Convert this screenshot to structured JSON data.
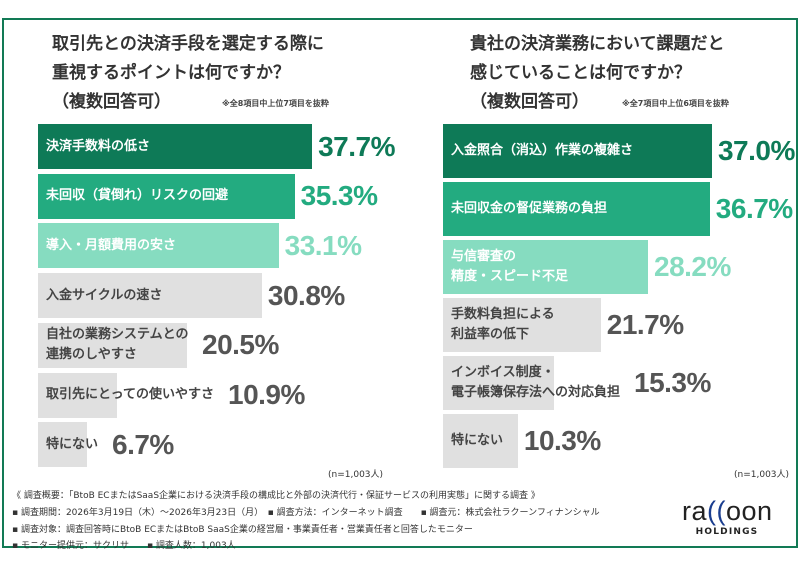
{
  "chart_data": [
    {
      "type": "bar",
      "orientation": "horizontal",
      "title": "取引先との決済手段を選定する際に重視するポイントは何ですか？（複数回答可）",
      "title_lines": [
        "取引先との決済手段を選定する際に",
        "重視するポイントは何ですか？",
        "（複数回答可）"
      ],
      "note": "※全8項目中上位7項目を抜粋",
      "n_label": "(n=1,003人)",
      "unit": "%",
      "categories": [
        "決済手数料の低さ",
        "未回収（貸倒れ）リスクの回避",
        "導入・月額費用の安さ",
        "入金サイクルの速さ",
        "自社の業務システムとの\n連携のしやすさ",
        "取引先にとっての使いやすさ",
        "特にない"
      ],
      "values": [
        37.7,
        35.3,
        33.1,
        30.8,
        20.5,
        10.9,
        6.7
      ],
      "labels": [
        "37.7%",
        "35.3%",
        "33.1%",
        "30.8%",
        "20.5%",
        "10.9%",
        "6.7%"
      ],
      "colors": [
        "#0e7a57",
        "#23ab80",
        "#86dcc0",
        "#e0e0e0",
        "#e0e0e0",
        "#e0e0e0",
        "#e0e0e0"
      ]
    },
    {
      "type": "bar",
      "orientation": "horizontal",
      "title": "貴社の決済業務において課題だと感じていることは何ですか？（複数回答可）",
      "title_lines": [
        "貴社の決済業務において課題だと",
        "感じていることは何ですか？",
        "（複数回答可）"
      ],
      "note": "※全7項目中上位6項目を抜粋",
      "n_label": "(n=1,003人)",
      "unit": "%",
      "categories": [
        "入金照合（消込）作業の複雑さ",
        "未回収金の督促業務の負担",
        "与信審査の\n精度・スピード不足",
        "手数料負担による\n利益率の低下",
        "インボイス制度・\n電子帳簿保存法への対応負担",
        "特にない"
      ],
      "values": [
        37.0,
        36.7,
        28.2,
        21.7,
        15.3,
        10.3
      ],
      "labels": [
        "37.0%",
        "36.7%",
        "28.2%",
        "21.7%",
        "15.3%",
        "10.3%"
      ],
      "colors": [
        "#0e7a57",
        "#23ab80",
        "#86dcc0",
        "#e0e0e0",
        "#e0e0e0",
        "#e0e0e0"
      ]
    }
  ],
  "footer": {
    "overview": "《 調査概要：「BtoB ECまたはSaaS企業における決済手段の構成比と外部の決済代行・保証サービスの利用実態」に関する調査 》",
    "line1": "▪ 調査期間：2026年3月19日（木）～2026年3月23日（月）　▪ 調査方法：インターネット調査　　▪ 調査元：株式会社ラクーンフィナンシャル",
    "line2": "▪ 調査対象：調査回答時にBtoB ECまたはBtoB SaaS企業の経営層・事業責任者・営業責任者と回答したモニター",
    "line3": "▪ モニター提供元：サクリサ　　▪ 調査人数：1,003人"
  },
  "logo": {
    "text": "raccoon",
    "sub": "HOLDINGS"
  }
}
